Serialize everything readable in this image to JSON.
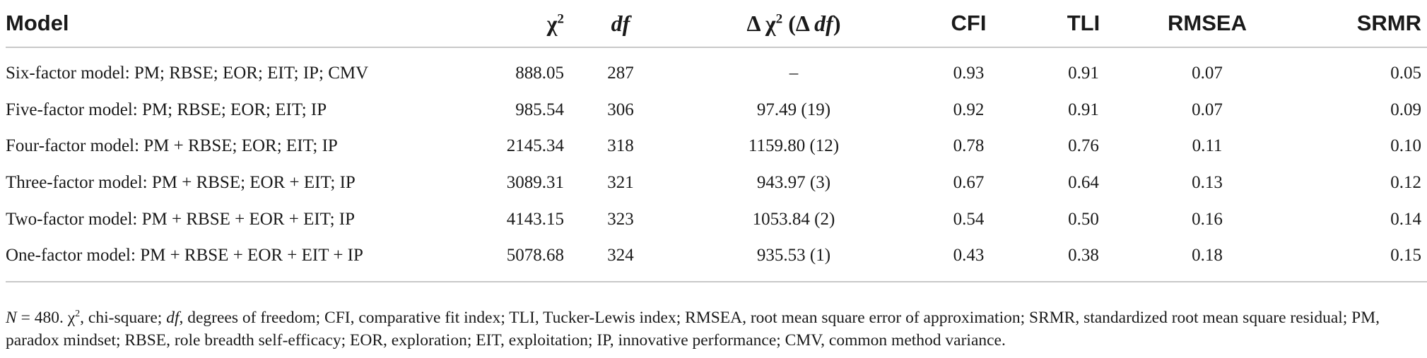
{
  "table": {
    "headers": {
      "model": "Model",
      "chi_symbol": "χ",
      "chi_sup": "2",
      "df": "df",
      "delta_prefix": "Δ χ",
      "delta_sup": "2",
      "delta_open": " (Δ ",
      "delta_df": "df",
      "delta_close": ")",
      "cfi": "CFI",
      "tli": "TLI",
      "rmsea": "RMSEA",
      "srmr": "SRMR"
    },
    "rows": [
      {
        "model": "Six-factor model: PM; RBSE; EOR; EIT; IP; CMV",
        "chi2": "888.05",
        "df": "287",
        "delta": "–",
        "cfi": "0.93",
        "tli": "0.91",
        "rmsea": "0.07",
        "srmr": "0.05"
      },
      {
        "model": "Five-factor model: PM; RBSE; EOR; EIT; IP",
        "chi2": "985.54",
        "df": "306",
        "delta": "97.49 (19)",
        "cfi": "0.92",
        "tli": "0.91",
        "rmsea": "0.07",
        "srmr": "0.09"
      },
      {
        "model": "Four-factor model: PM + RBSE; EOR; EIT; IP",
        "chi2": "2145.34",
        "df": "318",
        "delta": "1159.80 (12)",
        "cfi": "0.78",
        "tli": "0.76",
        "rmsea": "0.11",
        "srmr": "0.10"
      },
      {
        "model": "Three-factor model: PM + RBSE; EOR + EIT; IP",
        "chi2": "3089.31",
        "df": "321",
        "delta": "943.97 (3)",
        "cfi": "0.67",
        "tli": "0.64",
        "rmsea": "0.13",
        "srmr": "0.12"
      },
      {
        "model": "Two-factor model: PM + RBSE + EOR + EIT; IP",
        "chi2": "4143.15",
        "df": "323",
        "delta": "1053.84 (2)",
        "cfi": "0.54",
        "tli": "0.50",
        "rmsea": "0.16",
        "srmr": "0.14"
      },
      {
        "model": "One-factor model: PM + RBSE + EOR + EIT + IP",
        "chi2": "5078.68",
        "df": "324",
        "delta": "935.53 (1)",
        "cfi": "0.43",
        "tli": "0.38",
        "rmsea": "0.18",
        "srmr": "0.15"
      }
    ]
  },
  "note": {
    "n_label": "N",
    "part1": " = 480. χ",
    "chi_sup": "2",
    "part2": ", chi-square; ",
    "df_label": "df",
    "part3": ", degrees of freedom; CFI, comparative fit index; TLI, Tucker-Lewis index; RMSEA, root mean square error of approximation; SRMR, standardized root mean square residual; PM, paradox mindset; RBSE, role breadth self-efficacy; EOR, exploration; EIT, exploitation; IP, innovative performance; CMV, common method variance."
  }
}
